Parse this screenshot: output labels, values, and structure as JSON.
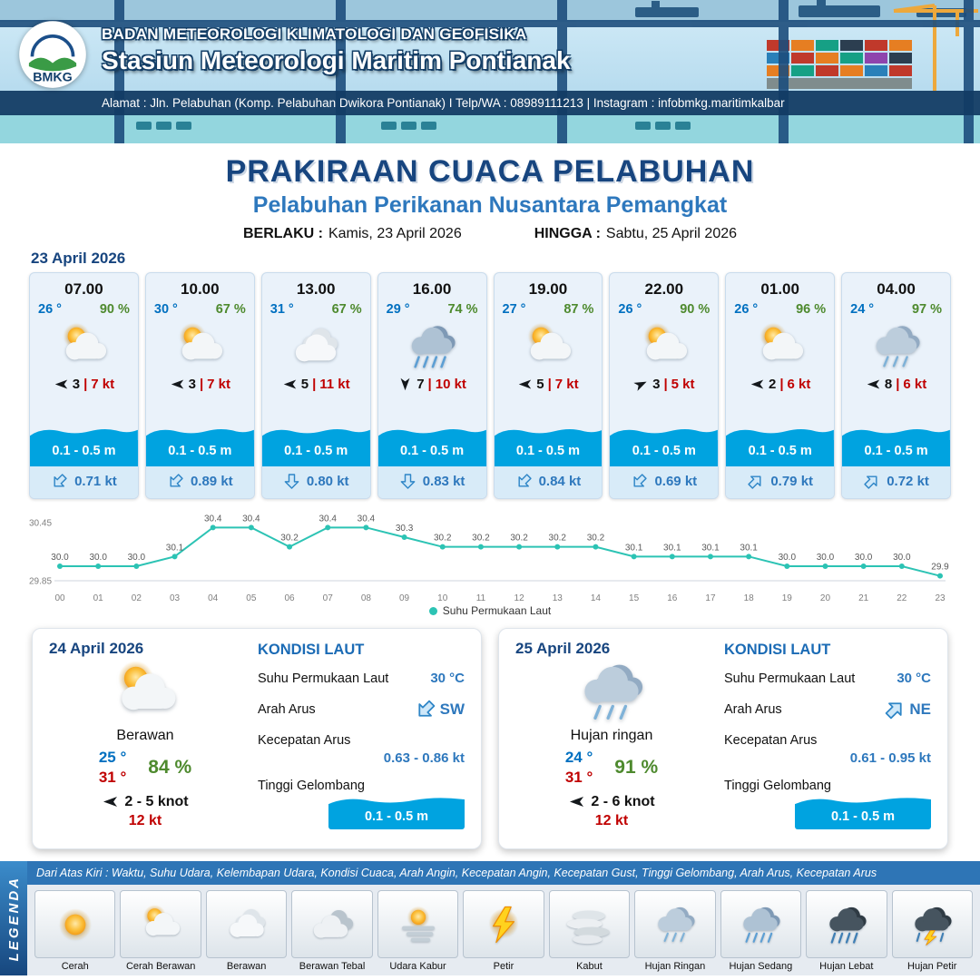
{
  "header": {
    "agency": "BADAN METEOROLOGI KLIMATOLOGI DAN GEOFISIKA",
    "station": "Stasiun Meteorologi Maritim Pontianak",
    "address": "Alamat : Jln. Pelabuhan (Komp. Pelabuhan Dwikora Pontianak) I Telp/WA : 08989111213 | Instagram : infobmkg.maritimkalbar",
    "logo_text": "BMKG"
  },
  "title": {
    "main": "PRAKIRAAN CUACA PELABUHAN",
    "subtitle": "Pelabuhan Perikanan Nusantara Pemangkat",
    "valid_from_label": "BERLAKU :",
    "valid_from": "Kamis, 23 April 2026",
    "valid_to_label": "HINGGA :",
    "valid_to": "Sabtu, 25 April 2026"
  },
  "forecast": {
    "date": "23 April 2026",
    "sep": "|",
    "cards": [
      {
        "time": "07.00",
        "temp": "26 °",
        "humidity": "90 %",
        "icon": "cerah-berawan",
        "wind": "3",
        "gust": "7 kt",
        "wave": "0.1 - 0.5 m",
        "current": "0.71 kt",
        "wind_style": "transform:rotate(180deg)",
        "current_style": "transform:rotate(225deg)"
      },
      {
        "time": "10.00",
        "temp": "30 °",
        "humidity": "67 %",
        "icon": "cerah-berawan",
        "wind": "3",
        "gust": "7 kt",
        "wave": "0.1 - 0.5 m",
        "current": "0.89 kt",
        "wind_style": "transform:rotate(180deg)",
        "current_style": "transform:rotate(225deg)"
      },
      {
        "time": "13.00",
        "temp": "31 °",
        "humidity": "67 %",
        "icon": "berawan",
        "wind": "5",
        "gust": "11 kt",
        "wave": "0.1 - 0.5 m",
        "current": "0.80 kt",
        "wind_style": "transform:rotate(180deg)",
        "current_style": "transform:rotate(180deg)"
      },
      {
        "time": "16.00",
        "temp": "29 °",
        "humidity": "74 %",
        "icon": "hujan-sedang",
        "wind": "7",
        "gust": "10 kt",
        "wave": "0.1 - 0.5 m",
        "current": "0.83 kt",
        "wind_style": "transform:rotate(90deg)",
        "current_style": "transform:rotate(180deg)"
      },
      {
        "time": "19.00",
        "temp": "27 °",
        "humidity": "87 %",
        "icon": "cerah-berawan",
        "wind": "5",
        "gust": "7 kt",
        "wave": "0.1 - 0.5 m",
        "current": "0.84 kt",
        "wind_style": "transform:rotate(180deg)",
        "current_style": "transform:rotate(225deg)"
      },
      {
        "time": "22.00",
        "temp": "26 °",
        "humidity": "90 %",
        "icon": "cerah-berawan",
        "wind": "3",
        "gust": "5 kt",
        "wave": "0.1 - 0.5 m",
        "current": "0.69 kt",
        "wind_style": "transform:rotate(-25deg)",
        "current_style": "transform:rotate(225deg)"
      },
      {
        "time": "01.00",
        "temp": "26 °",
        "humidity": "96 %",
        "icon": "cerah-berawan",
        "wind": "2",
        "gust": "6 kt",
        "wave": "0.1 - 0.5 m",
        "current": "0.79 kt",
        "wind_style": "transform:rotate(180deg)",
        "current_style": "transform:rotate(45deg)"
      },
      {
        "time": "04.00",
        "temp": "24 °",
        "humidity": "97 %",
        "icon": "hujan-ringan",
        "wind": "8",
        "gust": "6 kt",
        "wave": "0.1 - 0.5 m",
        "current": "0.72 kt",
        "wind_style": "transform:rotate(180deg)",
        "current_style": "transform:rotate(45deg)"
      }
    ]
  },
  "chart_data": {
    "type": "line",
    "x": [
      "00",
      "01",
      "02",
      "03",
      "04",
      "05",
      "06",
      "07",
      "08",
      "09",
      "10",
      "11",
      "12",
      "13",
      "14",
      "15",
      "16",
      "17",
      "18",
      "19",
      "20",
      "21",
      "22",
      "23"
    ],
    "series": [
      {
        "name": "Suhu Permukaan Laut",
        "values": [
          30.0,
          30.0,
          30.0,
          30.1,
          30.4,
          30.4,
          30.2,
          30.4,
          30.4,
          30.3,
          30.2,
          30.2,
          30.2,
          30.2,
          30.2,
          30.1,
          30.1,
          30.1,
          30.1,
          30.0,
          30.0,
          30.0,
          30.0,
          29.9
        ]
      }
    ],
    "ylim": [
      29.85,
      30.45
    ],
    "yticks": [
      30.45,
      29.85
    ],
    "line_color": "#2cc3b4",
    "legend_label": "Suhu Permukaan Laut",
    "legend_position": "bottom",
    "grid": false
  },
  "daily": [
    {
      "date": "24 April 2026",
      "condition": "Berawan",
      "icon": "cerah-berawan",
      "temp_min": "25 °",
      "temp_max": "31 °",
      "humidity": "84 %",
      "wind_range": "2  - 5 knot",
      "gust": "12 kt",
      "wind_style": "transform:rotate(180deg)",
      "sea": {
        "title": "KONDISI LAUT",
        "sst_label": "Suhu Permukaan Laut",
        "sst": "30 °C",
        "dir_label": "Arah Arus",
        "dir": "SW",
        "dir_style": "transform:rotate(225deg)",
        "speed_label": "Kecepatan Arus",
        "speed": "0.63 - 0.86 kt",
        "wave_label": "Tinggi Gelombang",
        "wave": "0.1 - 0.5 m"
      }
    },
    {
      "date": "25 April 2026",
      "condition": "Hujan ringan",
      "icon": "hujan-ringan",
      "temp_min": "24 °",
      "temp_max": "31 °",
      "humidity": "91 %",
      "wind_range": "2  - 6 knot",
      "gust": "12 kt",
      "wind_style": "transform:rotate(180deg)",
      "sea": {
        "title": "KONDISI LAUT",
        "sst_label": "Suhu Permukaan Laut",
        "sst": "30 °C",
        "dir_label": "Arah Arus",
        "dir": "NE",
        "dir_style": "transform:rotate(45deg)",
        "speed_label": "Kecepatan Arus",
        "speed": "0.61 - 0.95 kt",
        "wave_label": "Tinggi Gelombang",
        "wave": "0.1 - 0.5 m"
      }
    }
  ],
  "legend": {
    "title": "LEGENDA",
    "note": "Dari Atas Kiri : Waktu, Suhu Udara, Kelembapan Udara, Kondisi Cuaca, Arah Angin, Kecepatan Angin, Kecepatan Gust, Tinggi Gelombang, Arah Arus, Kecepatan Arus",
    "items": [
      {
        "label": "Cerah",
        "icon": "cerah"
      },
      {
        "label": "Cerah Berawan",
        "icon": "cerah-berawan"
      },
      {
        "label": "Berawan",
        "icon": "berawan"
      },
      {
        "label": "Berawan Tebal",
        "icon": "berawan-tebal"
      },
      {
        "label": "Udara Kabur",
        "icon": "udara-kabur"
      },
      {
        "label": "Petir",
        "icon": "petir"
      },
      {
        "label": "Kabut",
        "icon": "kabut"
      },
      {
        "label": "Hujan Ringan",
        "icon": "hujan-ringan"
      },
      {
        "label": "Hujan Sedang",
        "icon": "hujan-sedang"
      },
      {
        "label": "Hujan Lebat",
        "icon": "hujan-lebat"
      },
      {
        "label": "Hujan Petir",
        "icon": "hujan-petir"
      }
    ]
  }
}
